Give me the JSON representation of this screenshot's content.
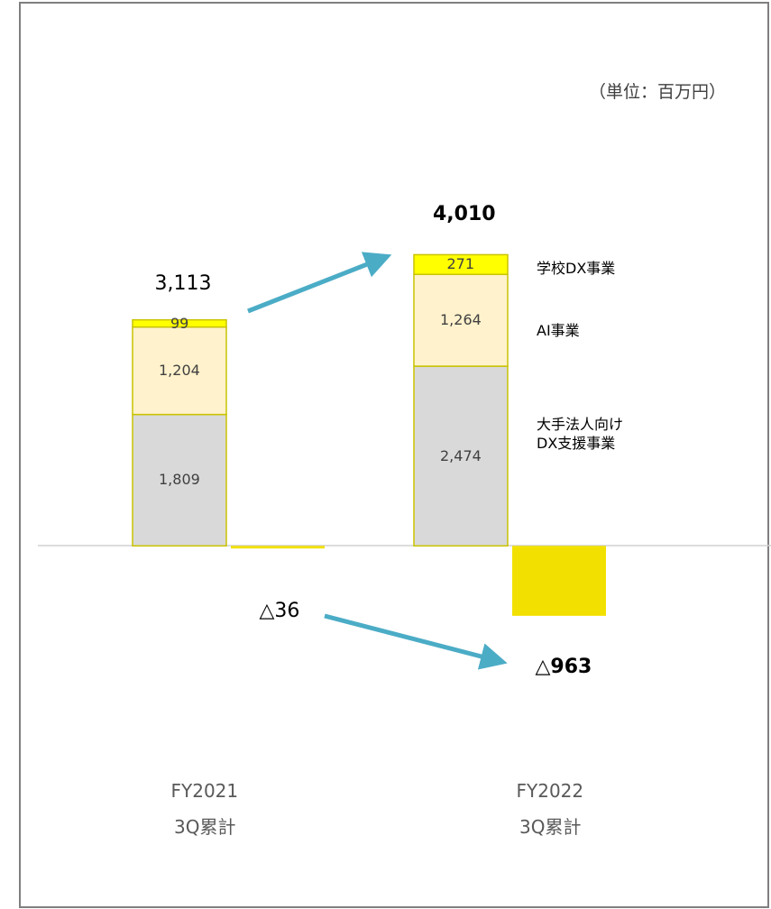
{
  "chart_data": {
    "type": "stacked_bar",
    "unit_label": "（単位：百万円）",
    "categories": [
      "FY2021",
      "FY2022"
    ],
    "period": "3Q累計",
    "series": [
      {
        "name": "大手法人向け\nDX支援事業",
        "color": "#d9d9d9",
        "values": [
          1809,
          2474
        ],
        "value_labels": [
          "1,809",
          "2,474"
        ]
      },
      {
        "name": "AI事業",
        "color": "#fff2cc",
        "values": [
          1204,
          1264
        ],
        "value_labels": [
          "1,204",
          "1,264"
        ]
      },
      {
        "name": "学校DX事業",
        "color": "#ffff00",
        "values": [
          99,
          271
        ],
        "value_labels": [
          "99",
          "271"
        ]
      }
    ],
    "totals": {
      "values": [
        3113,
        4010
      ],
      "value_labels": [
        "3,113",
        "4,010"
      ]
    },
    "loss": {
      "color": "#f2e100",
      "values": [
        -36,
        -963
      ],
      "value_labels": [
        "△36",
        "△963"
      ]
    },
    "ylim": [
      -1250,
      4300
    ]
  }
}
